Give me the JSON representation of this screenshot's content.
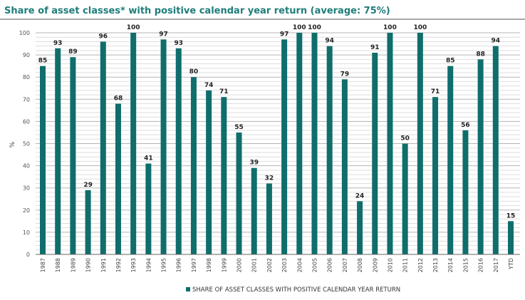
{
  "chart_data": {
    "type": "bar",
    "title": "Share of asset classes* with positive calendar year return (average: 75%)",
    "xlabel": "",
    "ylabel": "%",
    "ylim": [
      0,
      100
    ],
    "yticks": [
      0,
      10,
      20,
      30,
      40,
      50,
      60,
      70,
      80,
      90,
      100
    ],
    "grid": true,
    "legend_position": "bottom-center",
    "categories": [
      "1987",
      "1988",
      "1989",
      "1990",
      "1991",
      "1992",
      "1993",
      "1994",
      "1995",
      "1996",
      "1997",
      "1998",
      "1999",
      "2000",
      "2001",
      "2002",
      "2003",
      "2004",
      "2005",
      "2006",
      "2007",
      "2008",
      "2009",
      "2010",
      "2011",
      "2012",
      "2013",
      "2014",
      "2015",
      "2016",
      "2017",
      "YTD"
    ],
    "series": [
      {
        "name": "SHARE OF ASSET CLASSES WITH POSITIVE CALENDAR YEAR RETURN",
        "color": "#0f6e6b",
        "values": [
          85,
          93,
          89,
          29,
          96,
          68,
          100,
          41,
          97,
          93,
          80,
          74,
          71,
          55,
          39,
          32,
          97,
          100,
          100,
          94,
          79,
          24,
          91,
          100,
          50,
          100,
          71,
          85,
          56,
          88,
          94,
          15
        ]
      }
    ]
  },
  "colors": {
    "title": "#1e7d7a",
    "bar": "#0f6e6b",
    "grid": "#bdbdbd"
  }
}
